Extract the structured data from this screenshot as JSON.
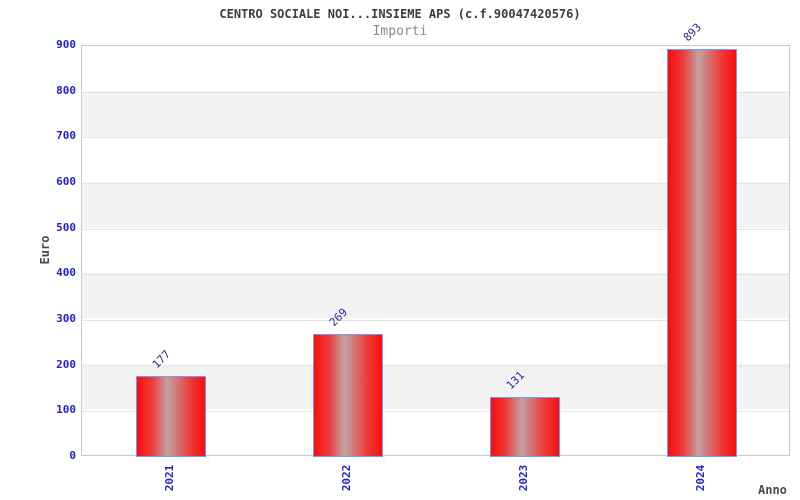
{
  "chart_data": {
    "type": "bar",
    "title": "CENTRO SOCIALE NOI...INSIEME APS (c.f.90047420576)",
    "subtitle": "Importi",
    "xlabel": "Anno",
    "ylabel": "Euro",
    "categories": [
      "2021",
      "2022",
      "2023",
      "2024"
    ],
    "values": [
      177,
      269,
      131,
      893
    ],
    "ylim": [
      0,
      900
    ],
    "ytick_step": 100,
    "yticks": [
      0,
      100,
      200,
      300,
      400,
      500,
      600,
      700,
      800,
      900
    ],
    "legend": "none",
    "grid": "horizontal-bands-alternating",
    "value_label_rotation_deg": 45,
    "x_tick_rotation_deg": 90,
    "colors": {
      "bar_fill_edge": "#fb0d0d",
      "bar_fill_center": "#c2a2a2",
      "bar_border": "#6b9ff0",
      "tick_label": "#2323cc",
      "value_label": "#27279e",
      "band": "#f3f3f3",
      "gridline": "#e4e4e4",
      "axis_text": "#4a4a4a",
      "title_text": "#3d3d3d",
      "subtitle_text": "#8a8a8a"
    }
  }
}
